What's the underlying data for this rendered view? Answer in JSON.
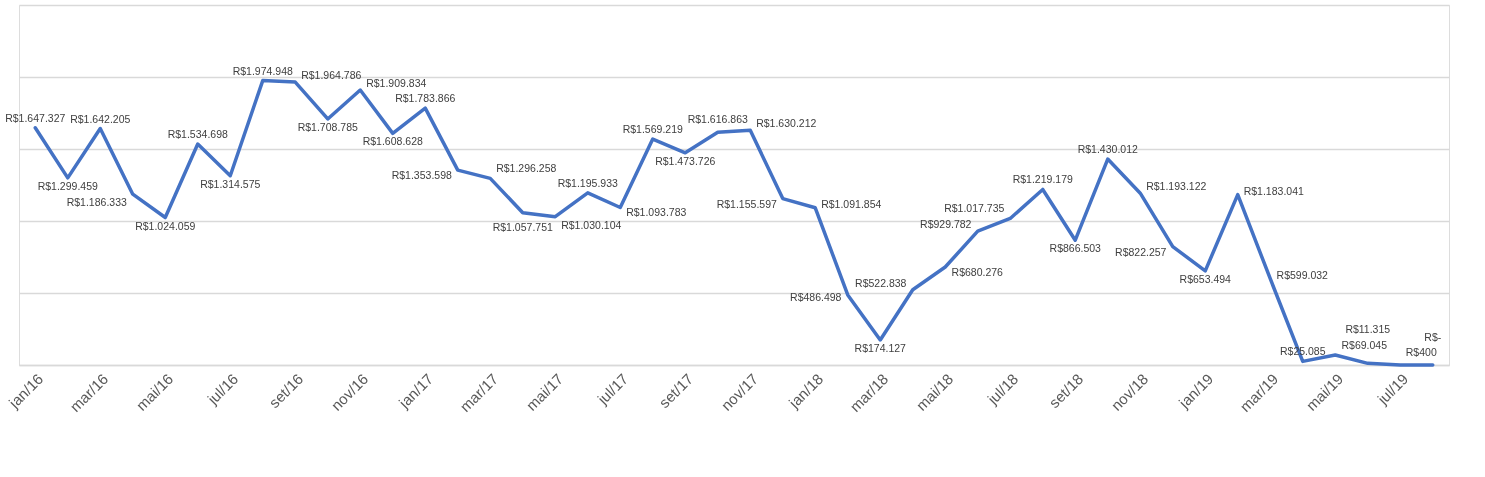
{
  "chart_data": {
    "type": "line",
    "categories": [
      "jan/16",
      null,
      "mar/16",
      null,
      "mai/16",
      null,
      "jul/16",
      null,
      "set/16",
      null,
      "nov/16",
      null,
      "jan/17",
      null,
      "mar/17",
      null,
      "mai/17",
      null,
      "jul/17",
      null,
      "set/17",
      null,
      "nov/17",
      null,
      "jan/18",
      null,
      "mar/18",
      null,
      "mai/18",
      null,
      "jul/18",
      null,
      "set/18",
      null,
      "nov/18",
      null,
      "jan/19",
      null,
      "mar/19",
      null,
      "mai/19",
      null,
      "jul/19",
      null
    ],
    "values": [
      1647327,
      1299459,
      1642205,
      1186333,
      1024059,
      1534698,
      1314575,
      1974948,
      1964786,
      1708785,
      1909834,
      1608628,
      1783866,
      1353598,
      1296258,
      1057751,
      1030104,
      1195933,
      1093783,
      1569219,
      1473726,
      1616863,
      1630212,
      1155597,
      1091854,
      486498,
      174127,
      522838,
      680276,
      929782,
      1017735,
      1219179,
      866503,
      1430012,
      1193122,
      822257,
      653494,
      1183041,
      599032,
      25085,
      69045,
      11315,
      400,
      0
    ],
    "value_labels": [
      "R$1.647.327",
      "R$1.299.459",
      "R$1.642.205",
      "R$1.186.333",
      "R$1.024.059",
      "R$1.534.698",
      "R$1.314.575",
      "R$1.974.948",
      "R$1.964.786",
      "R$1.708.785",
      "R$1.909.834",
      "R$1.608.628",
      "R$1.783.866",
      "R$1.353.598",
      "R$1.296.258",
      "R$1.057.751",
      "R$1.030.104",
      "R$1.195.933",
      "R$1.093.783",
      "R$1.569.219",
      "R$1.473.726",
      "R$1.616.863",
      "R$1.630.212",
      "R$1.155.597",
      "R$1.091.854",
      "R$486.498",
      "R$174.127",
      "R$522.838",
      "R$680.276",
      "R$929.782",
      "R$1.017.735",
      "R$1.219.179",
      "R$866.503",
      "R$1.430.012",
      "R$1.193.122",
      "R$822.257",
      "R$653.494",
      "R$1.183.041",
      "R$599.032",
      "R$25.085",
      "R$69.045",
      "R$11.315",
      "R$400",
      "R$-"
    ],
    "color": "#4472c4",
    "ylim": [
      0,
      2500000
    ],
    "yticks": [
      {
        "value": 0,
        "label": null
      },
      {
        "value": 500000,
        "label": null
      },
      {
        "value": 1000000,
        "label": null
      },
      {
        "value": 1500000,
        "label": null
      },
      {
        "value": 2000000,
        "label": null
      },
      {
        "value": 2500000,
        "label": null
      }
    ],
    "grid": "y",
    "tick_labels": "x",
    "line_style": "solid"
  }
}
